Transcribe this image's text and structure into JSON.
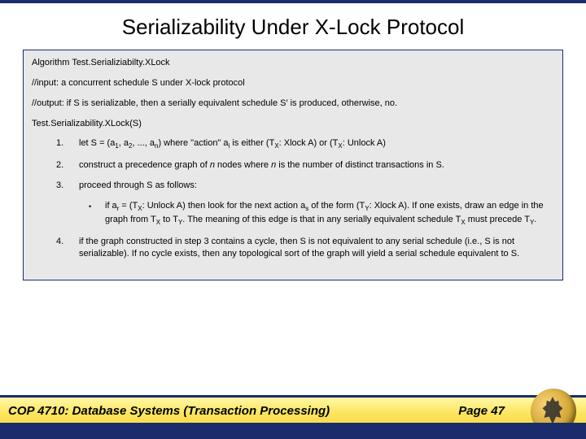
{
  "title": "Serializability Under X-Lock Protocol",
  "algorithm": {
    "name": "Algorithm Test.Serializiabilty.XLock",
    "input": "//input:  a concurrent schedule S under X-lock protocol",
    "output_prefix": "//output: if S is serializable, then a serially equivalent schedule S",
    "output_suffix": " is produced, otherwise, no.",
    "call": "Test.Serializability.XLock(S)",
    "s1_num": "1.",
    "s1_a": "let S = (a",
    "s1_b": ", a",
    "s1_c": ", ..., a",
    "s1_d": ") where \"action\" a",
    "s1_e": " is either (T",
    "s1_f": ": Xlock A) or (T",
    "s1_g": ": Unlock A)",
    "s2_num": "2.",
    "s2_a": "construct a precedence graph of ",
    "s2_b": " nodes where ",
    "s2_c": " is the number of distinct transactions in S.",
    "s3_num": "3.",
    "s3": "proceed through S as follows:",
    "s3sub_bullet": "•",
    "s3sub_a": "if a",
    "s3sub_b": " = (T",
    "s3sub_c": ": Unlock A) then look for the next action a",
    "s3sub_d": " of the form (T",
    "s3sub_e": ": Xlock A). If one exists, draw an edge in the graph from T",
    "s3sub_f": " to T",
    "s3sub_g": ".  The meaning of this edge is that in any serially equivalent schedule T",
    "s3sub_h": " must precede T",
    "s3sub_i": ".",
    "s4_num": "4.",
    "s4": "if the graph constructed in step 3 contains a cycle, then S is not equivalent to any serial schedule (i.e., S is not serializable).  If no cycle exists, then any topological sort of the graph will yield a serial schedule equivalent to S."
  },
  "footer": {
    "course": "COP 4710: Database Systems  (Transaction Processing)",
    "page": "Page 47"
  },
  "colors": {
    "navy": "#1a2c6b",
    "box_bg": "#e8e8e8",
    "gold1": "#fff9a8",
    "gold2": "#f8c93b"
  }
}
